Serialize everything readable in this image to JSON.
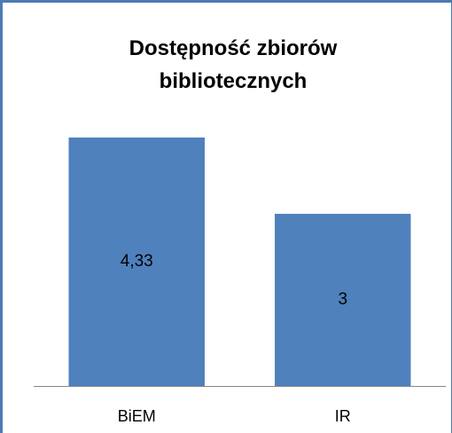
{
  "chart_data": {
    "type": "bar",
    "title": "Dostępność zbiorów bibliotecznych",
    "categories": [
      "BiEM",
      "IR"
    ],
    "values": [
      4.33,
      3
    ],
    "value_labels": [
      "4,33",
      "3"
    ],
    "color": "#4f81bd"
  }
}
